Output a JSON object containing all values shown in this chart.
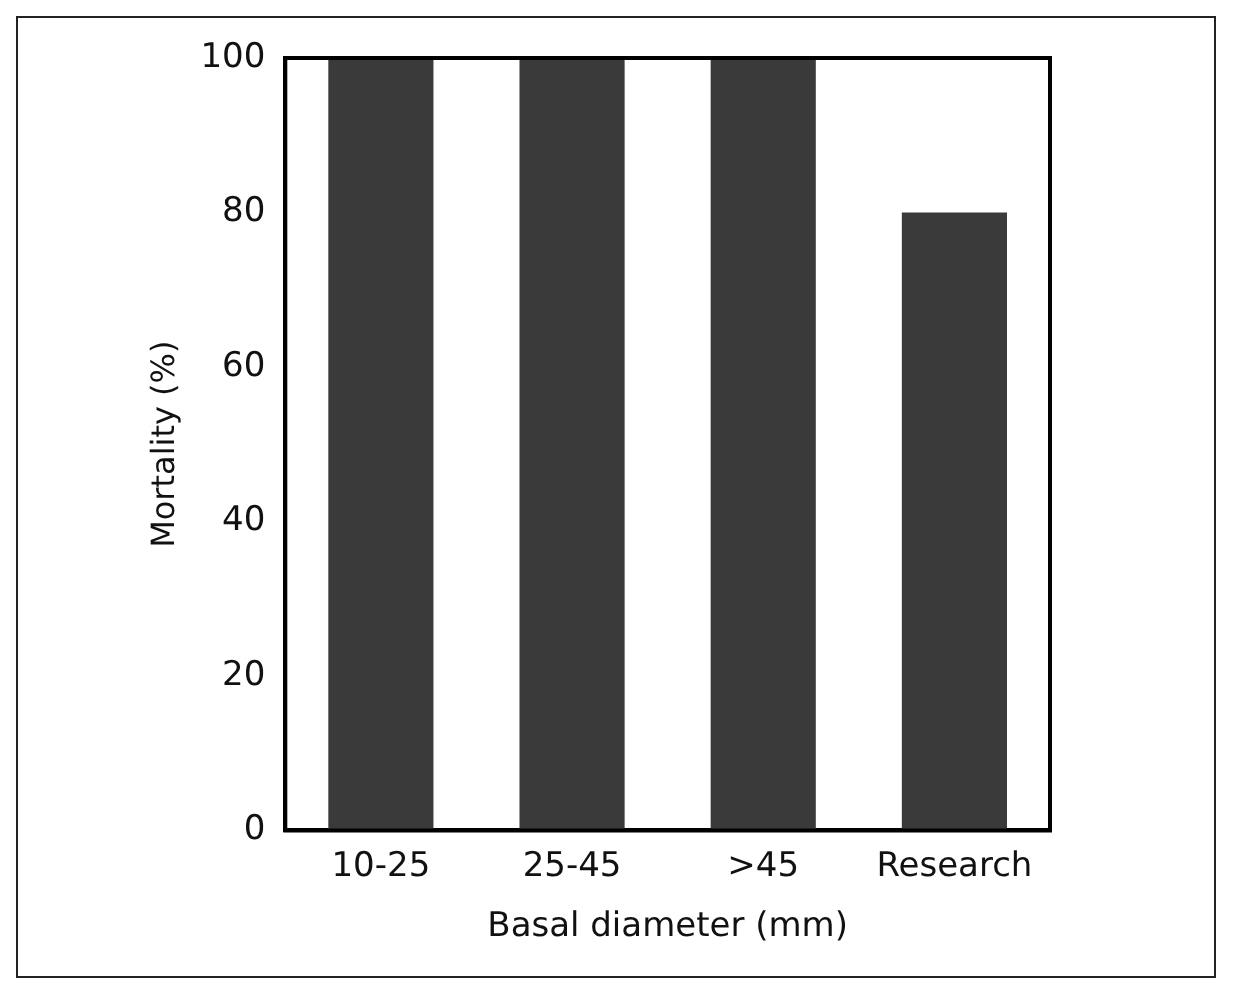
{
  "chart_data": {
    "type": "bar",
    "xlabel": "Basal diameter (mm)",
    "ylabel": "Mortality (%)",
    "categories": [
      "10-25",
      "25-45",
      ">45",
      "Research"
    ],
    "values": [
      100,
      100,
      100,
      80
    ],
    "color": "#3a3a3a",
    "ylim": [
      0,
      100
    ],
    "yticks": [
      0,
      20,
      40,
      60,
      80,
      100
    ],
    "grid": false,
    "legend": false
  }
}
